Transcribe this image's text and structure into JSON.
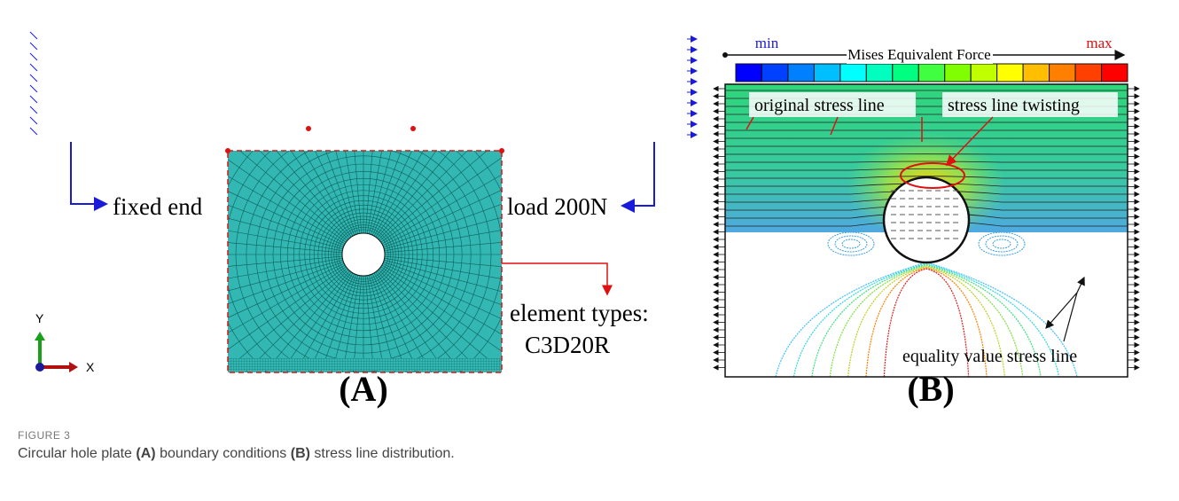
{
  "panel_a": {
    "label": "(A)",
    "fixed_end": "fixed end",
    "load": "load 200N",
    "element_types": "element types:",
    "element_code": "C3D20R",
    "axis_y": "Y",
    "axis_x": "X"
  },
  "panel_b": {
    "label": "(B)",
    "colorbar_min": "min",
    "colorbar_title": "Mises Equivalent Force",
    "colorbar_max": "max",
    "annotations": [
      "original stress line",
      "stress line twisting",
      "equality value stress line"
    ]
  },
  "caption": {
    "figure_label": "FIGURE 3",
    "segments": [
      "Circular hole plate ",
      "(A)",
      " boundary conditions ",
      "(B)",
      " stress line distribution."
    ]
  }
}
